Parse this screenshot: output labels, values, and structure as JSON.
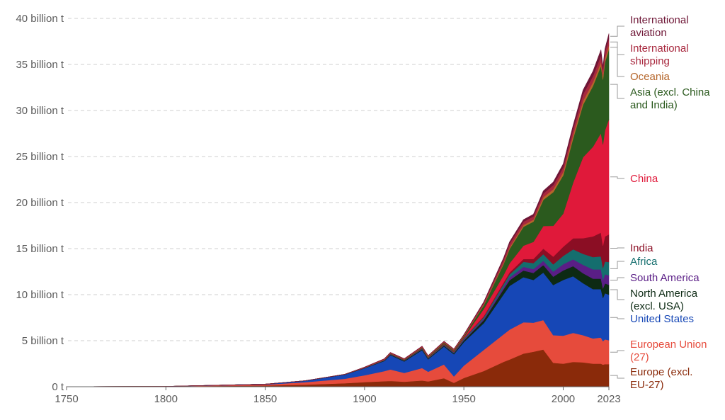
{
  "chart_data": {
    "type": "area",
    "stacked": true,
    "title": "",
    "xlabel": "",
    "ylabel": "",
    "xlim": [
      1750,
      2023
    ],
    "ylim": [
      0,
      40
    ],
    "x_ticks": [
      {
        "value": 1750,
        "label": "1750"
      },
      {
        "value": 1800,
        "label": "1800"
      },
      {
        "value": 1850,
        "label": "1850"
      },
      {
        "value": 1900,
        "label": "1900"
      },
      {
        "value": 1950,
        "label": "1950"
      },
      {
        "value": 2000,
        "label": "2000"
      },
      {
        "value": 2023,
        "label": "2023"
      }
    ],
    "y_ticks": [
      {
        "value": 0,
        "label": "0 t"
      },
      {
        "value": 5,
        "label": "5 billion t"
      },
      {
        "value": 10,
        "label": "10 billion t"
      },
      {
        "value": 15,
        "label": "15 billion t"
      },
      {
        "value": 20,
        "label": "20 billion t"
      },
      {
        "value": 25,
        "label": "25 billion t"
      },
      {
        "value": 30,
        "label": "30 billion t"
      },
      {
        "value": 35,
        "label": "35 billion t"
      },
      {
        "value": 40,
        "label": "40 billion t"
      }
    ],
    "grid": true,
    "legend_position": "right",
    "x": [
      1750,
      1800,
      1850,
      1870,
      1890,
      1900,
      1910,
      1913,
      1920,
      1929,
      1932,
      1940,
      1945,
      1950,
      1960,
      1970,
      1973,
      1980,
      1985,
      1990,
      1995,
      2000,
      2005,
      2010,
      2015,
      2019,
      2020,
      2021,
      2023
    ],
    "series": [
      {
        "name": "Europe (excl. EU-27)",
        "color": "#8a2a0a",
        "values": [
          0.005,
          0.02,
          0.13,
          0.22,
          0.38,
          0.5,
          0.6,
          0.63,
          0.55,
          0.68,
          0.58,
          0.92,
          0.42,
          0.95,
          1.7,
          2.7,
          2.95,
          3.6,
          3.8,
          4.05,
          2.6,
          2.5,
          2.7,
          2.65,
          2.5,
          2.5,
          2.4,
          2.45,
          2.45
        ]
      },
      {
        "name": "European Union (27)",
        "color": "#e64b3c",
        "values": [
          0.004,
          0.015,
          0.1,
          0.27,
          0.48,
          0.75,
          1.1,
          1.25,
          0.95,
          1.35,
          1.05,
          1.5,
          0.7,
          1.35,
          2.3,
          3.0,
          3.25,
          3.4,
          3.15,
          3.2,
          3.0,
          3.05,
          3.15,
          2.95,
          2.75,
          2.85,
          2.55,
          2.7,
          2.6
        ]
      },
      {
        "name": "United States",
        "color": "#1647b6",
        "values": [
          0.0,
          0.005,
          0.05,
          0.15,
          0.45,
          0.75,
          1.1,
          1.55,
          1.25,
          1.95,
          1.35,
          1.95,
          2.4,
          2.55,
          2.9,
          4.35,
          4.75,
          4.9,
          4.65,
          5.15,
          5.45,
          6.05,
          6.15,
          5.65,
          5.35,
          5.25,
          4.7,
          5.0,
          4.95
        ]
      },
      {
        "name": "North America (excl. USA)",
        "color": "#0d2a14",
        "values": [
          0.0,
          0.0,
          0.005,
          0.01,
          0.02,
          0.03,
          0.05,
          0.07,
          0.07,
          0.1,
          0.08,
          0.1,
          0.12,
          0.19,
          0.33,
          0.55,
          0.62,
          0.72,
          0.76,
          0.82,
          0.9,
          1.03,
          1.1,
          1.08,
          1.13,
          1.15,
          1.02,
          1.07,
          1.07
        ]
      },
      {
        "name": "South America",
        "color": "#5a1e86",
        "values": [
          0.0,
          0.0,
          0.0,
          0.0,
          0.005,
          0.01,
          0.02,
          0.02,
          0.02,
          0.03,
          0.03,
          0.04,
          0.05,
          0.08,
          0.15,
          0.25,
          0.29,
          0.4,
          0.42,
          0.46,
          0.56,
          0.68,
          0.74,
          0.92,
          1.02,
          1.0,
          0.93,
          1.0,
          1.02
        ]
      },
      {
        "name": "Africa",
        "color": "#146e6e",
        "values": [
          0.0,
          0.0,
          0.0,
          0.0,
          0.005,
          0.01,
          0.02,
          0.025,
          0.03,
          0.04,
          0.04,
          0.06,
          0.07,
          0.1,
          0.16,
          0.28,
          0.33,
          0.55,
          0.65,
          0.72,
          0.78,
          0.9,
          1.08,
          1.18,
          1.33,
          1.4,
          1.3,
          1.38,
          1.45
        ]
      },
      {
        "name": "India",
        "color": "#8b0e24",
        "values": [
          0.0,
          0.0,
          0.0,
          0.0,
          0.005,
          0.01,
          0.02,
          0.03,
          0.03,
          0.04,
          0.04,
          0.06,
          0.07,
          0.07,
          0.12,
          0.2,
          0.22,
          0.3,
          0.45,
          0.6,
          0.84,
          1.0,
          1.2,
          1.7,
          2.25,
          2.6,
          2.42,
          2.72,
          3.0
        ]
      },
      {
        "name": "China",
        "color": "#e0193a",
        "values": [
          0.0,
          0.0,
          0.0,
          0.0,
          0.0,
          0.0,
          0.01,
          0.01,
          0.01,
          0.02,
          0.02,
          0.04,
          0.03,
          0.08,
          0.78,
          0.8,
          1.0,
          1.45,
          1.85,
          2.45,
          3.35,
          3.6,
          6.05,
          8.8,
          9.75,
          10.8,
          11.0,
          11.5,
          12.5
        ]
      },
      {
        "name": "Asia (excl. China and India)",
        "color": "#2b5a1e",
        "values": [
          0.0,
          0.0,
          0.0,
          0.0,
          0.005,
          0.01,
          0.02,
          0.03,
          0.04,
          0.06,
          0.07,
          0.12,
          0.1,
          0.12,
          0.4,
          1.2,
          1.55,
          2.05,
          2.2,
          2.85,
          3.65,
          4.15,
          4.8,
          5.7,
          6.6,
          7.3,
          7.05,
          7.4,
          7.6
        ]
      },
      {
        "name": "Oceania",
        "color": "#b5652a",
        "values": [
          0.0,
          0.0,
          0.0,
          0.0,
          0.005,
          0.01,
          0.02,
          0.02,
          0.02,
          0.03,
          0.03,
          0.04,
          0.04,
          0.05,
          0.09,
          0.15,
          0.17,
          0.2,
          0.22,
          0.29,
          0.32,
          0.37,
          0.41,
          0.43,
          0.43,
          0.44,
          0.43,
          0.44,
          0.45
        ]
      },
      {
        "name": "International shipping",
        "color": "#a8283e",
        "values": [
          0.0,
          0.0,
          0.0,
          0.0,
          0.0,
          0.05,
          0.08,
          0.09,
          0.08,
          0.1,
          0.09,
          0.1,
          0.1,
          0.1,
          0.2,
          0.35,
          0.4,
          0.35,
          0.35,
          0.4,
          0.45,
          0.5,
          0.6,
          0.7,
          0.65,
          0.7,
          0.65,
          0.68,
          0.7
        ]
      },
      {
        "name": "International aviation",
        "color": "#6e1636",
        "values": [
          0.0,
          0.0,
          0.0,
          0.0,
          0.0,
          0.0,
          0.0,
          0.0,
          0.0,
          0.0,
          0.0,
          0.0,
          0.0,
          0.03,
          0.08,
          0.17,
          0.2,
          0.22,
          0.23,
          0.28,
          0.32,
          0.37,
          0.42,
          0.46,
          0.52,
          0.6,
          0.3,
          0.36,
          0.55
        ]
      }
    ],
    "legend": [
      {
        "lines": [
          "International",
          "aviation"
        ],
        "color": "#6e1636"
      },
      {
        "lines": [
          "International",
          "shipping"
        ],
        "color": "#a8283e"
      },
      {
        "lines": [
          "Oceania"
        ],
        "color": "#b5652a"
      },
      {
        "lines": [
          "Asia (excl. China",
          "and India)"
        ],
        "color": "#2b5a1e"
      },
      {
        "lines": [
          "China"
        ],
        "color": "#e0193a"
      },
      {
        "lines": [
          "India"
        ],
        "color": "#8b0e24"
      },
      {
        "lines": [
          "Africa"
        ],
        "color": "#146e6e"
      },
      {
        "lines": [
          "South America"
        ],
        "color": "#5a1e86"
      },
      {
        "lines": [
          "North America",
          "(excl. USA)"
        ],
        "color": "#0d2a14"
      },
      {
        "lines": [
          "United States"
        ],
        "color": "#1647b6"
      },
      {
        "lines": [
          "European Union",
          "(27)"
        ],
        "color": "#e64b3c"
      },
      {
        "lines": [
          "Europe (excl.",
          "EU-27)"
        ],
        "color": "#8a2a0a"
      }
    ]
  }
}
